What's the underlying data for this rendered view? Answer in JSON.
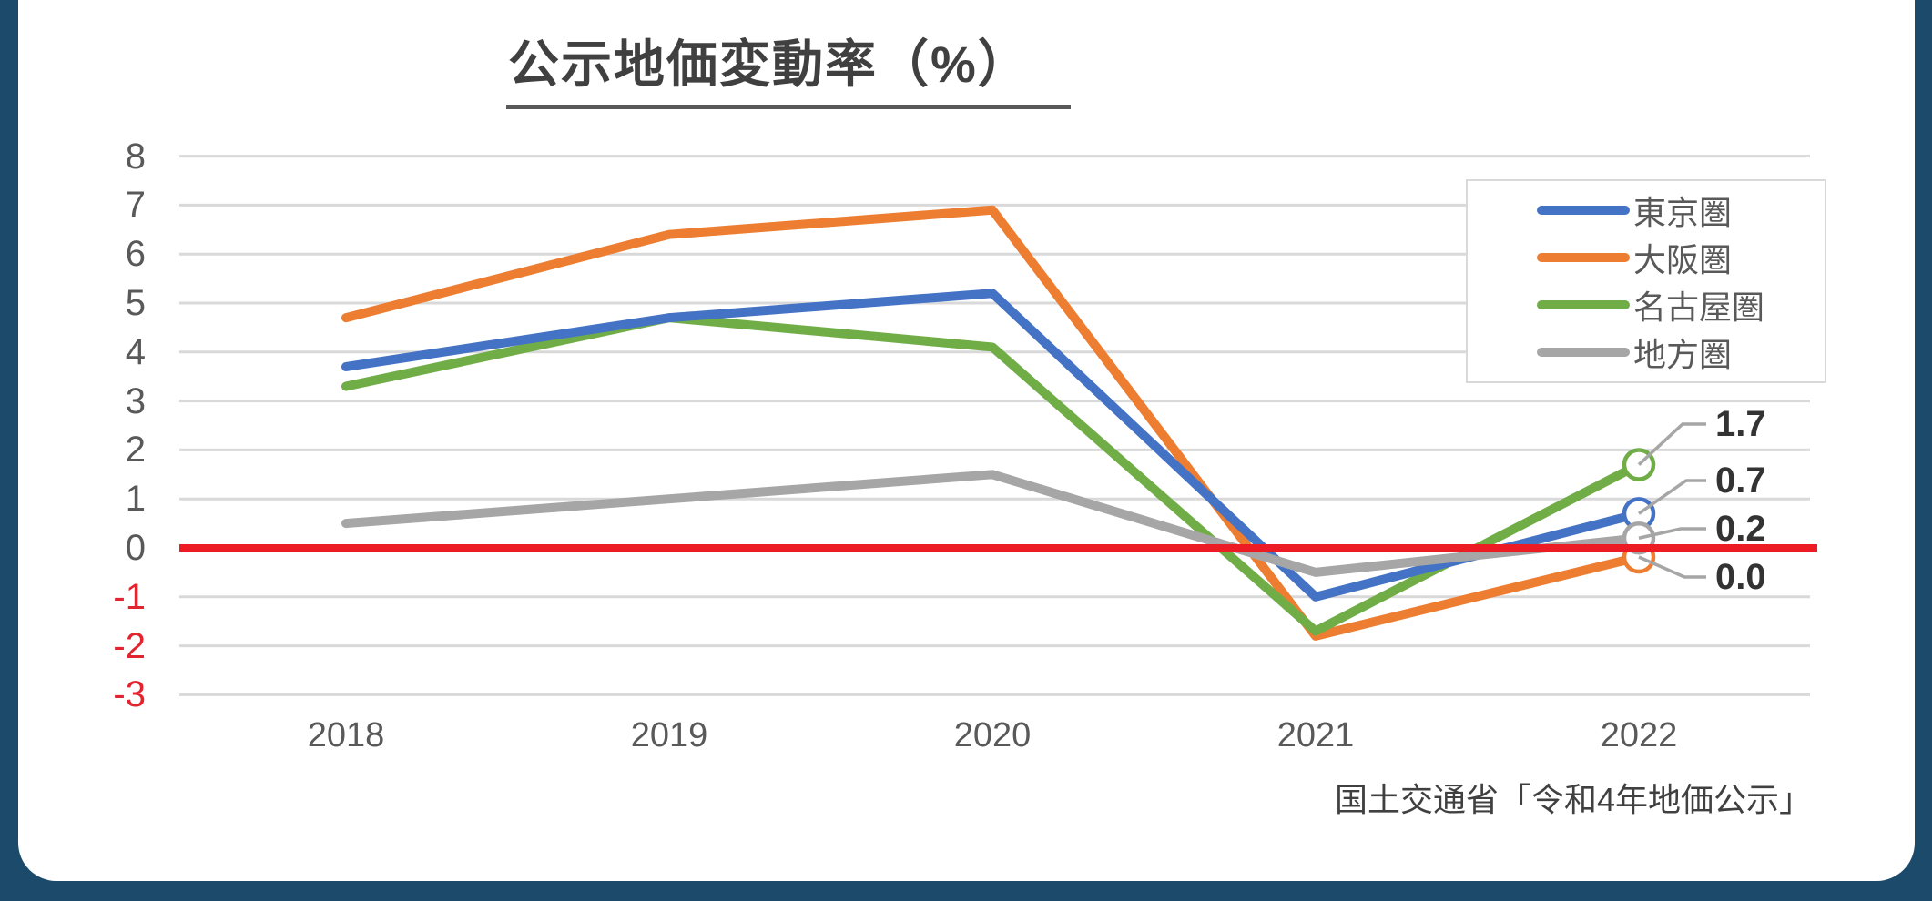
{
  "title": "公示地価変動率（%）",
  "source": "国土交通省「令和4年地価公示」",
  "colors": {
    "frame": "#1B4A6B",
    "gridline": "#D9D9D9",
    "zero_line": "#ED1C24",
    "axis_text": "#595959",
    "negative_axis_text": "#E2242F",
    "title_text": "#404040",
    "end_label_text": "#333333",
    "leader_line": "#A6A6A6"
  },
  "chart_data": {
    "type": "line",
    "title": "公示地価変動率（%）",
    "xlabel": "",
    "ylabel": "",
    "x": [
      2018,
      2019,
      2020,
      2021,
      2022
    ],
    "x_tick_labels": [
      "2018",
      "2019",
      "2020",
      "2021",
      "2022"
    ],
    "y_ticks": [
      8,
      7,
      6,
      5,
      4,
      3,
      2,
      1,
      0,
      -1,
      -2,
      -3
    ],
    "ylim": [
      -3,
      8
    ],
    "grid": "horizontal",
    "zero_line": true,
    "legend_position": "top-right",
    "series": [
      {
        "name": "東京圏",
        "color": "#4472C4",
        "values": [
          3.7,
          4.7,
          5.2,
          -1.0,
          0.7
        ]
      },
      {
        "name": "大阪圏",
        "color": "#ED7D31",
        "values": [
          4.7,
          6.4,
          6.9,
          -1.8,
          0.0
        ]
      },
      {
        "name": "名古屋圏",
        "color": "#70AD47",
        "values": [
          3.3,
          4.7,
          4.1,
          -1.7,
          1.7
        ]
      },
      {
        "name": "地方圏",
        "color": "#A6A6A6",
        "values": [
          0.5,
          1.0,
          1.5,
          -0.5,
          0.2
        ]
      }
    ],
    "end_labels": [
      {
        "text": "1.7",
        "series": "名古屋圏"
      },
      {
        "text": "0.7",
        "series": "東京圏"
      },
      {
        "text": "0.2",
        "series": "地方圏"
      },
      {
        "text": "0.0",
        "series": "大阪圏"
      }
    ]
  },
  "legend": {
    "items": [
      {
        "label": "東京圏"
      },
      {
        "label": "大阪圏"
      },
      {
        "label": "名古屋圏"
      },
      {
        "label": "地方圏"
      }
    ]
  }
}
